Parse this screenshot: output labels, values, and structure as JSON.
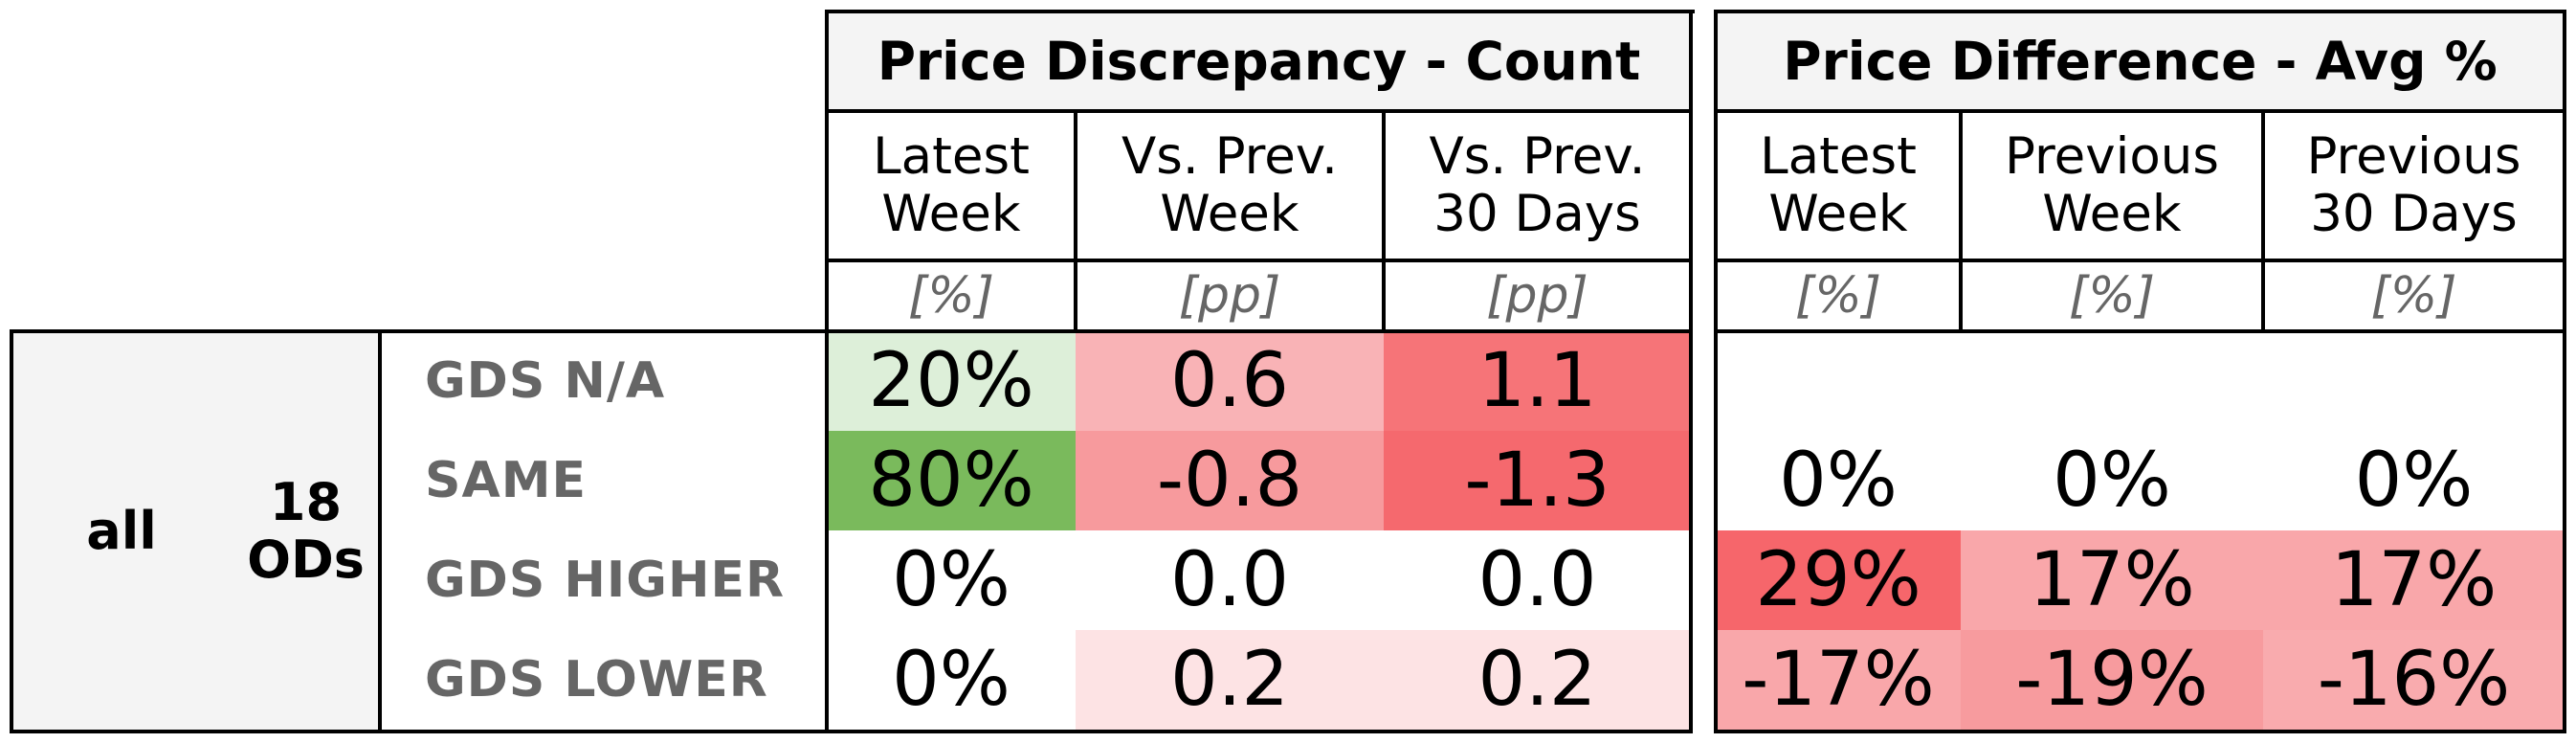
{
  "chart_data": {
    "type": "table",
    "stub": {
      "group": "all",
      "subgroup": "18\nODs"
    },
    "row_labels": [
      "GDS N/A",
      "SAME",
      "GDS HIGHER",
      "GDS LOWER"
    ],
    "panels": [
      {
        "title": "Price Discrepancy - Count",
        "columns": [
          {
            "label": "Latest\nWeek",
            "unit": "[%]"
          },
          {
            "label": "Vs. Prev.\nWeek",
            "unit": "[pp]"
          },
          {
            "label": "Vs. Prev.\n30 Days",
            "unit": "[pp]"
          }
        ],
        "rows": [
          [
            {
              "text": "20%",
              "color": "#ddefd9"
            },
            {
              "text": "0.6",
              "color": "#f9b3b6"
            },
            {
              "text": "1.1",
              "color": "#f67478"
            }
          ],
          [
            {
              "text": "80%",
              "color": "#7aba5c"
            },
            {
              "text": "-0.8",
              "color": "#f79a9d"
            },
            {
              "text": "-1.3",
              "color": "#f5696e"
            }
          ],
          [
            {
              "text": "0%",
              "color": "#ffffff"
            },
            {
              "text": "0.0",
              "color": "#ffffff"
            },
            {
              "text": "0.0",
              "color": "#ffffff"
            }
          ],
          [
            {
              "text": "0%",
              "color": "#ffffff"
            },
            {
              "text": "0.2",
              "color": "#fde3e4"
            },
            {
              "text": "0.2",
              "color": "#fde3e4"
            }
          ]
        ]
      },
      {
        "title": "Price Difference - Avg %",
        "columns": [
          {
            "label": "Latest\nWeek",
            "unit": "[%]"
          },
          {
            "label": "Previous\nWeek",
            "unit": "[%]"
          },
          {
            "label": "Previous\n30 Days",
            "unit": "[%]"
          }
        ],
        "rows": [
          [
            {
              "text": "",
              "color": "#ffffff"
            },
            {
              "text": "",
              "color": "#ffffff"
            },
            {
              "text": "",
              "color": "#ffffff"
            }
          ],
          [
            {
              "text": "0%",
              "color": "#ffffff"
            },
            {
              "text": "0%",
              "color": "#ffffff"
            },
            {
              "text": "0%",
              "color": "#ffffff"
            }
          ],
          [
            {
              "text": "29%",
              "color": "#f6666b"
            },
            {
              "text": "17%",
              "color": "#f9a7aa"
            },
            {
              "text": "17%",
              "color": "#f9a7aa"
            }
          ],
          [
            {
              "text": "-17%",
              "color": "#f9a7aa"
            },
            {
              "text": "-19%",
              "color": "#f79b9e"
            },
            {
              "text": "-16%",
              "color": "#f9abae"
            }
          ]
        ]
      }
    ]
  }
}
